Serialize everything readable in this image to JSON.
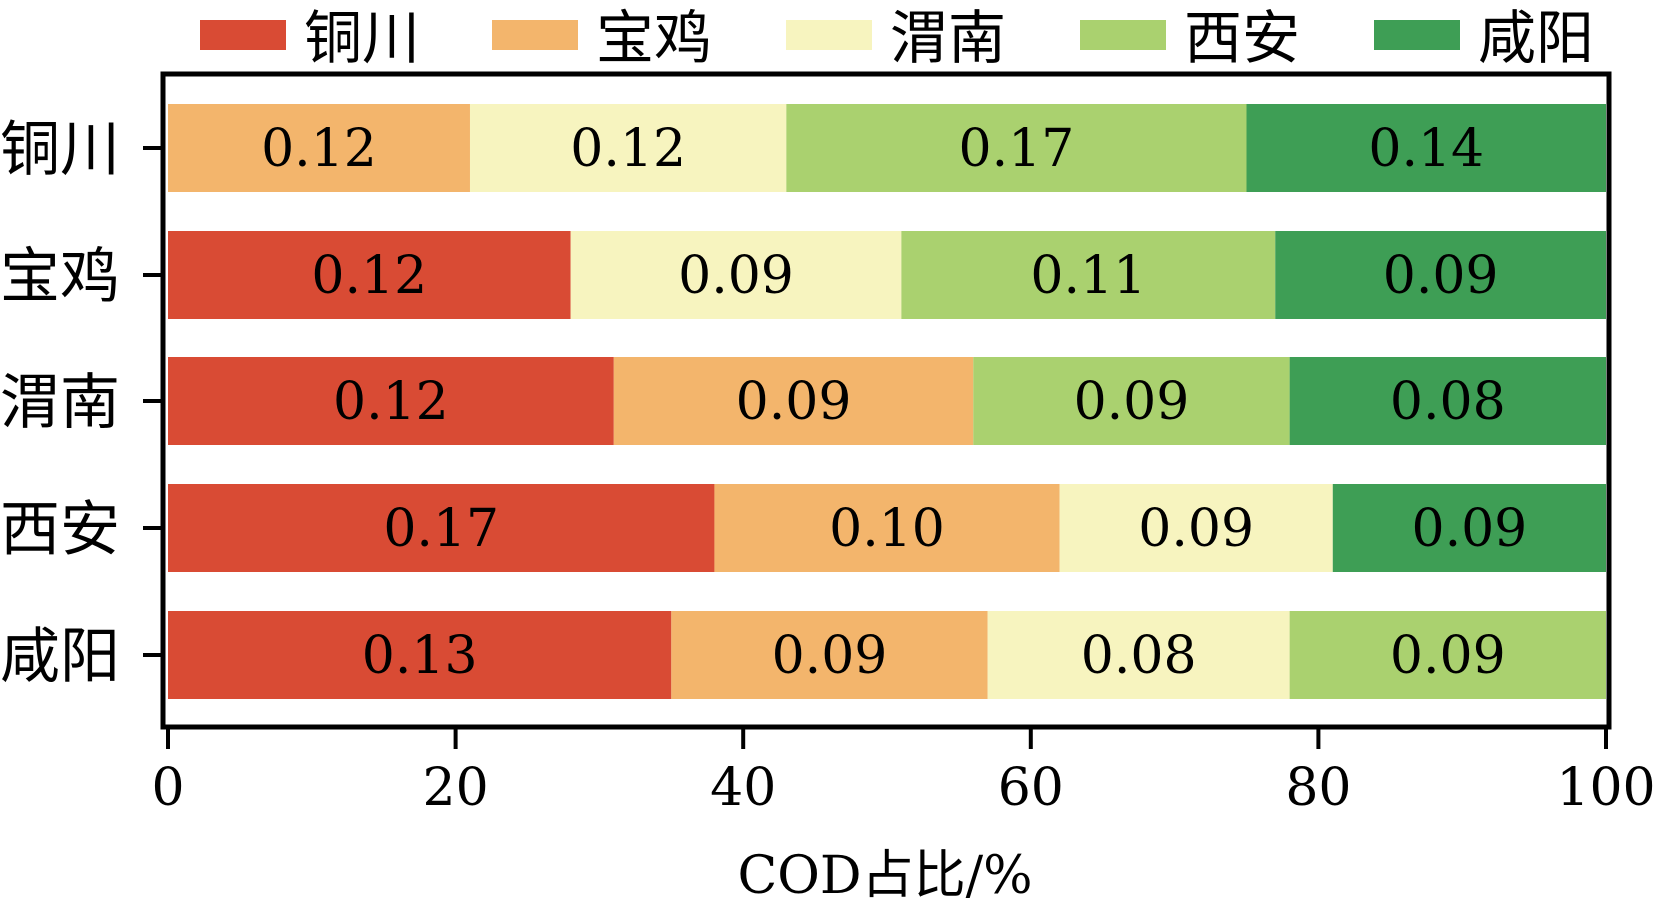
{
  "chart_data": {
    "type": "bar",
    "orientation": "horizontal",
    "stacked": true,
    "xlabel": "COD占比/%",
    "ylabel": "",
    "xlim": [
      0,
      100
    ],
    "xticks": [
      0,
      20,
      40,
      60,
      80,
      100
    ],
    "legend_position": "top",
    "categories": [
      "铜川",
      "宝鸡",
      "渭南",
      "西安",
      "咸阳"
    ],
    "series": [
      {
        "name": "铜川",
        "color": "#d94b34",
        "values": [
          null,
          28,
          31,
          38,
          35
        ],
        "labels": [
          null,
          "0.12",
          "0.12",
          "0.17",
          "0.13"
        ]
      },
      {
        "name": "宝鸡",
        "color": "#f3b56c",
        "values": [
          21,
          null,
          25,
          24,
          22
        ],
        "labels": [
          "0.12",
          null,
          "0.09",
          "0.10",
          "0.09"
        ]
      },
      {
        "name": "渭南",
        "color": "#f7f4bf",
        "values": [
          22,
          23,
          null,
          19,
          21
        ],
        "labels": [
          "0.12",
          "0.09",
          null,
          "0.09",
          "0.08"
        ]
      },
      {
        "name": "西安",
        "color": "#aad16f",
        "values": [
          32,
          26,
          22,
          null,
          22
        ],
        "labels": [
          "0.17",
          "0.11",
          "0.09",
          null,
          "0.09"
        ]
      },
      {
        "name": "咸阳",
        "color": "#3e9e55",
        "values": [
          25,
          23,
          22,
          19,
          null
        ],
        "labels": [
          "0.14",
          "0.09",
          "0.08",
          "0.09",
          null
        ]
      }
    ]
  }
}
